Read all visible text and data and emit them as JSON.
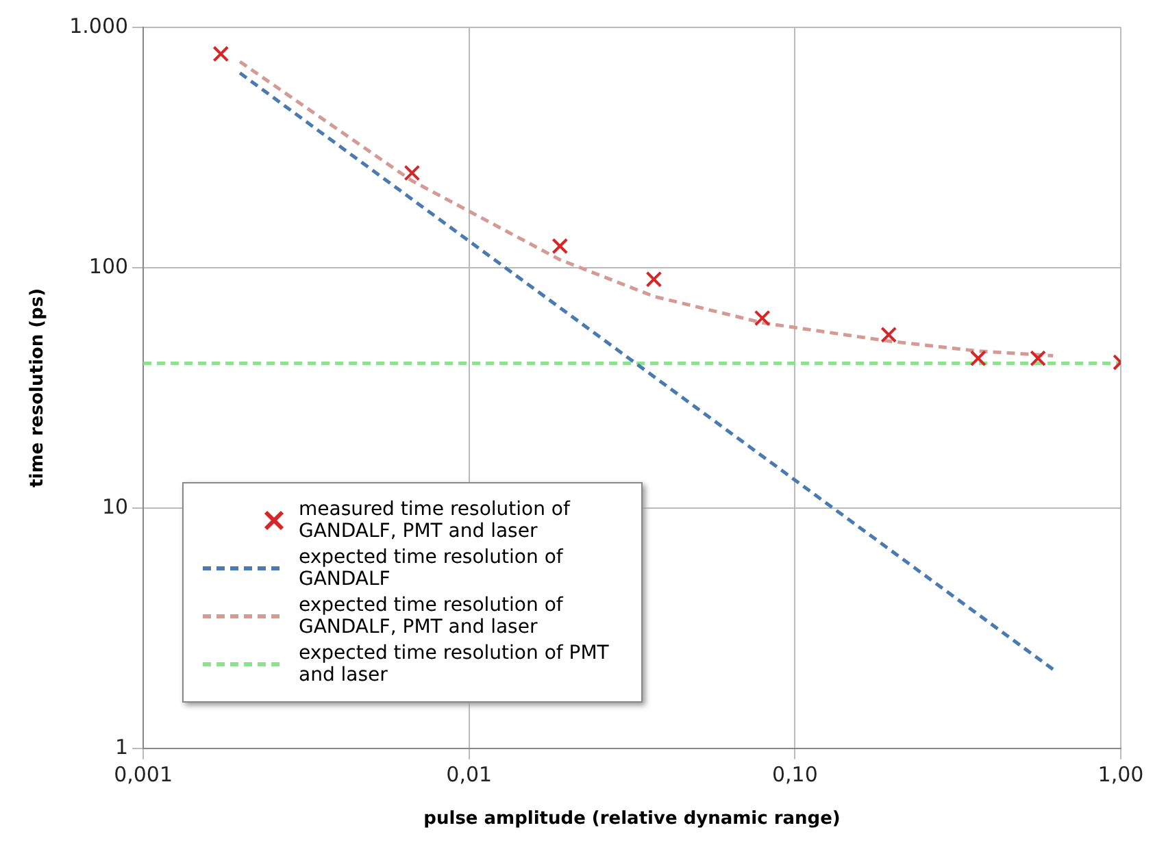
{
  "chart_data": {
    "type": "line",
    "xlabel": "pulse amplitude (relative dynamic range)",
    "ylabel": "time resolution (ps)",
    "log": "xy",
    "grid": true,
    "legend": "bottom left",
    "xlim": [
      0.001,
      1
    ],
    "ylim": [
      1,
      1000
    ],
    "xticks": [
      {
        "value": 0.001,
        "label": "0,001"
      },
      {
        "value": 0.01,
        "label": "0,01"
      },
      {
        "value": 0.1,
        "label": "0,10"
      },
      {
        "value": 1,
        "label": "1,00"
      }
    ],
    "yticks": [
      1,
      10,
      100,
      {
        "value": 1000,
        "label": "1.000"
      }
    ],
    "series": [
      {
        "name": "measured time resolution of GANDALF, PMT and laser",
        "type": "scatter",
        "marker": "cross",
        "color": "#d62728",
        "x": [
          0.00173,
          0.00668,
          0.019,
          0.0369,
          0.0794,
          0.194,
          0.365,
          0.557,
          1.0
        ],
        "values": [
          776,
          248,
          123,
          89.5,
          61.7,
          52.6,
          42,
          42,
          40.4
        ]
      },
      {
        "name": "expected time resolution of GANDALF",
        "type": "line",
        "marker": "none",
        "line_style": "dashed",
        "color": "#4a7ab0",
        "x": [
          0.00198,
          0.62
        ],
        "values": [
          646,
          2.13
        ]
      },
      {
        "name": "expected time resolution of GANDALF, PMT and laser",
        "type": "line",
        "marker": "none",
        "line_style": "dashed",
        "color": "#d49a94",
        "x": [
          0.00198,
          0.00668,
          0.019,
          0.0369,
          0.0794,
          0.194,
          0.365,
          0.62
        ],
        "values": [
          720,
          230,
          108,
          76,
          59,
          49.5,
          45,
          43
        ]
      },
      {
        "name": "expected time resolution of PMT and laser",
        "type": "line",
        "marker": "none",
        "line_style": "dashed",
        "color": "#8fe08f",
        "x": [
          0.001,
          1
        ],
        "values": [
          40,
          40
        ]
      }
    ]
  }
}
